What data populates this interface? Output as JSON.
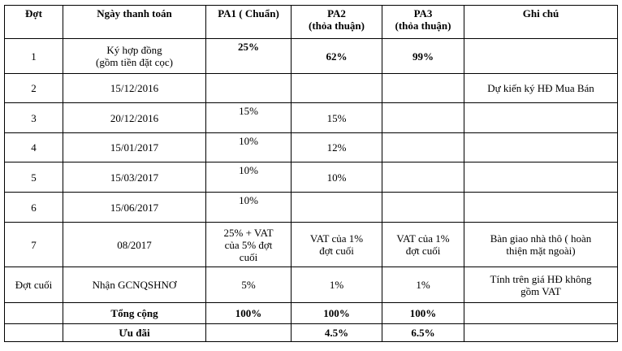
{
  "headers": {
    "dot": "Đợt",
    "date": "Ngày thanh toán",
    "pa1": "PA1 ( Chuẩn)",
    "pa2": "PA2\n(thỏa thuận)",
    "pa3": "PA3\n(thỏa thuận)",
    "note": "Ghi chú"
  },
  "rows": [
    {
      "dot": "1",
      "date": "Ký hợp đồng\n(gồm tiền đặt cọc)",
      "pa1": "25%",
      "pa2": "62%",
      "pa3": "99%",
      "note": ""
    },
    {
      "dot": "2",
      "date": "15/12/2016",
      "pa1": "",
      "pa2": "",
      "pa3": "",
      "note": "Dự kiến ký HĐ Mua Bán"
    },
    {
      "dot": "3",
      "date": "20/12/2016",
      "pa1": "15%",
      "pa2": "15%",
      "pa3": "",
      "note": ""
    },
    {
      "dot": "4",
      "date": "15/01/2017",
      "pa1": "10%",
      "pa2": "12%",
      "pa3": "",
      "note": ""
    },
    {
      "dot": "5",
      "date": "15/03/2017",
      "pa1": "10%",
      "pa2": "10%",
      "pa3": "",
      "note": ""
    },
    {
      "dot": "6",
      "date": "15/06/2017",
      "pa1": "10%",
      "pa2": "",
      "pa3": "",
      "note": ""
    },
    {
      "dot": "7",
      "date": "08/2017",
      "pa1": "25% + VAT\ncủa 5% đợt\ncuối",
      "pa2": "VAT của 1%\nđợt cuối",
      "pa3": "VAT của 1%\nđợt cuối",
      "note": "Bàn giao nhà thô ( hoàn\nthiện mặt ngoài)"
    },
    {
      "dot": "Đợt cuối",
      "date": "Nhận GCNQSHNƠ",
      "pa1": "5%",
      "pa2": "1%",
      "pa3": "1%",
      "note": "Tính trên giá HĐ không\ngồm VAT"
    }
  ],
  "total": {
    "label": "Tổng cộng",
    "pa1": "100%",
    "pa2": "100%",
    "pa3": "100%"
  },
  "discount": {
    "label": "Ưu đãi",
    "pa1": "",
    "pa2": "4.5%",
    "pa3": "6.5%"
  }
}
